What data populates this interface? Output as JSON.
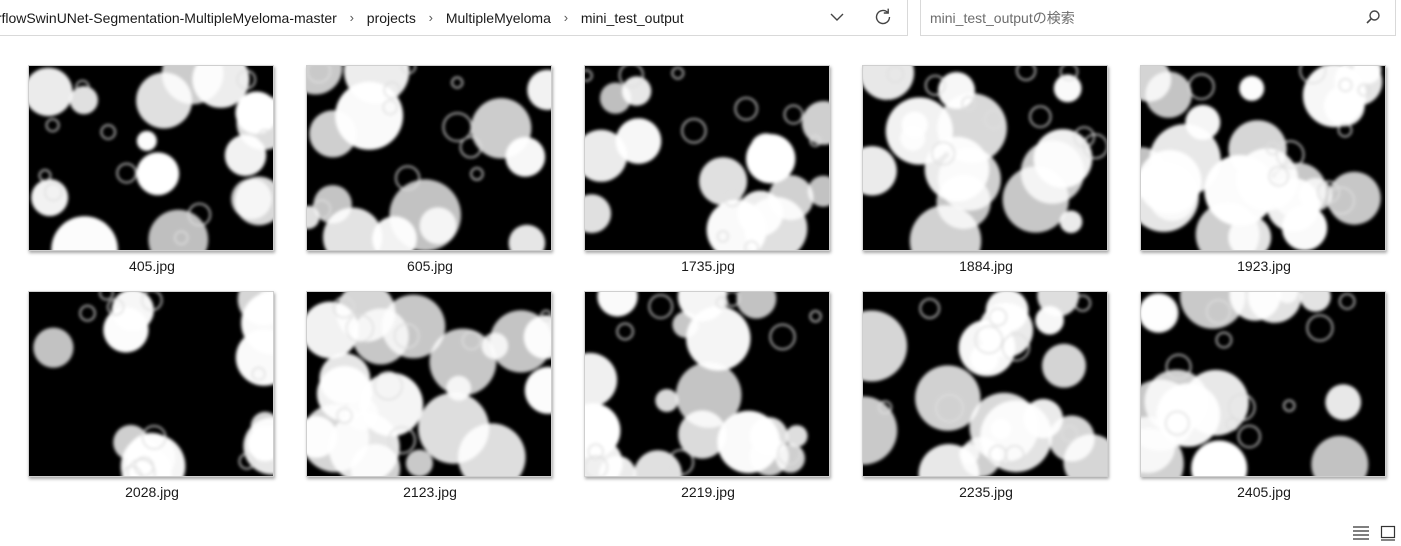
{
  "address_bar": {
    "breadcrumbs": [
      "orflowSwinUNet-Segmentation-MultipleMyeloma-master",
      "projects",
      "MultipleMyeloma",
      "mini_test_output"
    ]
  },
  "search": {
    "placeholder": "mini_test_outputの検索"
  },
  "files": [
    {
      "name": "405.jpg"
    },
    {
      "name": "605.jpg"
    },
    {
      "name": "1735.jpg"
    },
    {
      "name": "1884.jpg"
    },
    {
      "name": "1923.jpg"
    },
    {
      "name": "2028.jpg"
    },
    {
      "name": "2123.jpg"
    },
    {
      "name": "2219.jpg"
    },
    {
      "name": "2235.jpg"
    },
    {
      "name": "2405.jpg"
    }
  ],
  "icons": {
    "chevron": "chevron-down-icon",
    "refresh": "refresh-icon",
    "search": "search-icon",
    "details_view": "details-view-icon",
    "large_icons_view": "large-icons-view-icon"
  }
}
